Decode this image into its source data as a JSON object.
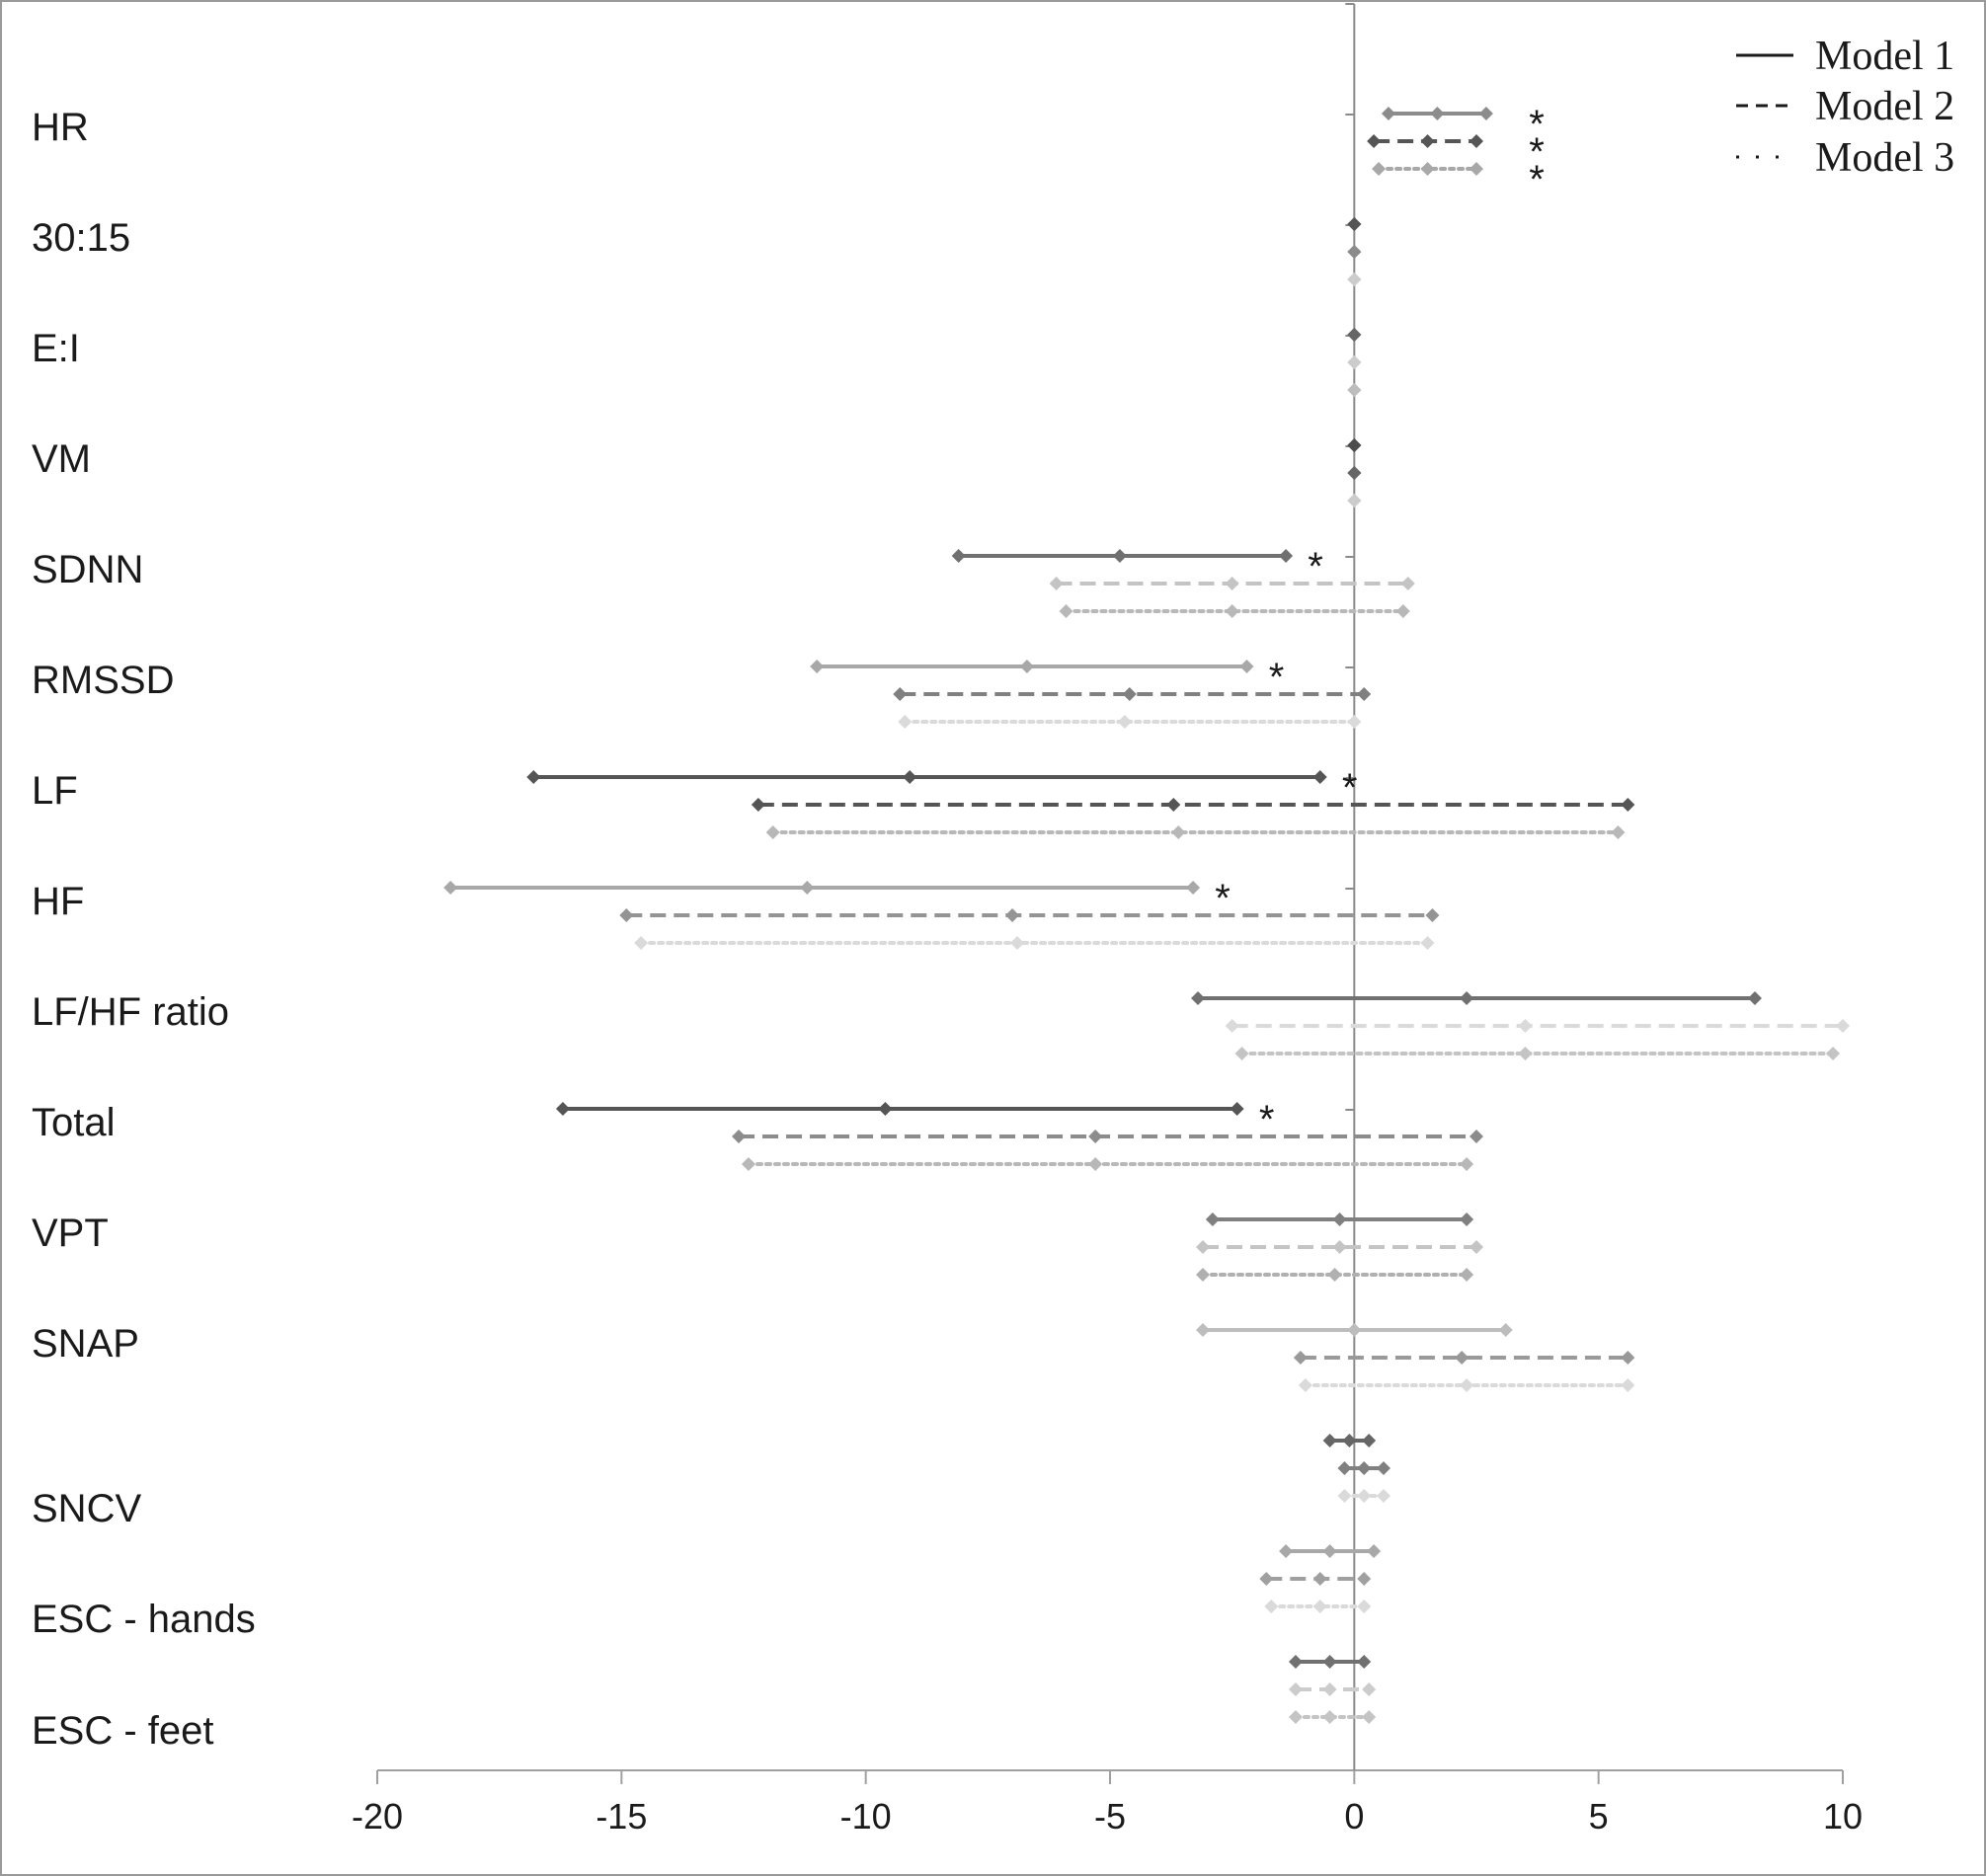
{
  "chart_data": {
    "type": "forest",
    "title": "",
    "xlabel": "",
    "ylabel": "",
    "xlim": [
      -20,
      10
    ],
    "xticks": [
      -20,
      -15,
      -10,
      -5,
      0,
      5,
      10
    ],
    "legend": {
      "position": "top-right",
      "entries": [
        {
          "label": "Model 1",
          "style": "solid"
        },
        {
          "label": "Model 2",
          "style": "dashed"
        },
        {
          "label": "Model 3",
          "style": "dotted"
        }
      ]
    },
    "series_styles": [
      "solid",
      "dashed",
      "dotted"
    ],
    "categories": [
      {
        "label": "HR",
        "rows": [
          {
            "model": 1,
            "lo": 0.7,
            "est": 1.7,
            "hi": 2.7,
            "sig": true,
            "color": "#8c8c8c"
          },
          {
            "model": 2,
            "lo": 0.4,
            "est": 1.5,
            "hi": 2.5,
            "sig": true,
            "color": "#555555"
          },
          {
            "model": 3,
            "lo": 0.5,
            "est": 1.5,
            "hi": 2.5,
            "sig": true,
            "color": "#a8a8a8"
          }
        ]
      },
      {
        "label": "30:15",
        "rows": [
          {
            "model": 1,
            "lo": 0,
            "est": 0,
            "hi": 0,
            "sig": false,
            "color": "#555555"
          },
          {
            "model": 2,
            "lo": 0,
            "est": 0,
            "hi": 0,
            "sig": false,
            "color": "#8c8c8c"
          },
          {
            "model": 3,
            "lo": 0,
            "est": 0,
            "hi": 0,
            "sig": false,
            "color": "#cccccc"
          }
        ]
      },
      {
        "label": "E:I",
        "rows": [
          {
            "model": 1,
            "lo": 0,
            "est": 0,
            "hi": 0,
            "sig": false,
            "color": "#666666"
          },
          {
            "model": 2,
            "lo": 0,
            "est": 0,
            "hi": 0,
            "sig": false,
            "color": "#cccccc"
          },
          {
            "model": 3,
            "lo": 0,
            "est": 0,
            "hi": 0,
            "sig": false,
            "color": "#bdbdbd"
          }
        ]
      },
      {
        "label": "VM",
        "rows": [
          {
            "model": 1,
            "lo": 0,
            "est": 0,
            "hi": 0,
            "sig": false,
            "color": "#4d4d4d"
          },
          {
            "model": 2,
            "lo": 0,
            "est": 0,
            "hi": 0,
            "sig": false,
            "color": "#666666"
          },
          {
            "model": 3,
            "lo": 0,
            "est": 0,
            "hi": 0,
            "sig": false,
            "color": "#cccccc"
          }
        ]
      },
      {
        "label": "SDNN",
        "rows": [
          {
            "model": 1,
            "lo": -8.1,
            "est": -4.8,
            "hi": -1.4,
            "sig": true,
            "color": "#707070"
          },
          {
            "model": 2,
            "lo": -6.1,
            "est": -2.5,
            "hi": 1.1,
            "sig": false,
            "color": "#c4c4c4"
          },
          {
            "model": 3,
            "lo": -5.9,
            "est": -2.5,
            "hi": 1.0,
            "sig": false,
            "color": "#b8b8b8"
          }
        ]
      },
      {
        "label": "RMSSD",
        "rows": [
          {
            "model": 1,
            "lo": -11.0,
            "est": -6.7,
            "hi": -2.2,
            "sig": true,
            "color": "#a8a8a8"
          },
          {
            "model": 2,
            "lo": -9.3,
            "est": -4.6,
            "hi": 0.2,
            "sig": false,
            "color": "#808080"
          },
          {
            "model": 3,
            "lo": -9.2,
            "est": -4.7,
            "hi": 0.0,
            "sig": false,
            "color": "#dadada"
          }
        ]
      },
      {
        "label": "LF",
        "rows": [
          {
            "model": 1,
            "lo": -16.8,
            "est": -9.1,
            "hi": -0.7,
            "sig": true,
            "color": "#555555"
          },
          {
            "model": 2,
            "lo": -12.2,
            "est": -3.7,
            "hi": 5.6,
            "sig": false,
            "color": "#555555"
          },
          {
            "model": 3,
            "lo": -11.9,
            "est": -3.6,
            "hi": 5.4,
            "sig": false,
            "color": "#b8b8b8"
          }
        ]
      },
      {
        "label": "HF",
        "rows": [
          {
            "model": 1,
            "lo": -18.5,
            "est": -11.2,
            "hi": -3.3,
            "sig": true,
            "color": "#a8a8a8"
          },
          {
            "model": 2,
            "lo": -14.9,
            "est": -7.0,
            "hi": 1.6,
            "sig": false,
            "color": "#949494"
          },
          {
            "model": 3,
            "lo": -14.6,
            "est": -6.9,
            "hi": 1.5,
            "sig": false,
            "color": "#dadada"
          }
        ]
      },
      {
        "label": "LF/HF ratio",
        "rows": [
          {
            "model": 1,
            "lo": -3.2,
            "est": 2.3,
            "hi": 8.2,
            "sig": false,
            "color": "#707070"
          },
          {
            "model": 2,
            "lo": -2.5,
            "est": 3.5,
            "hi": 10.0,
            "sig": false,
            "color": "#dadada"
          },
          {
            "model": 3,
            "lo": -2.3,
            "est": 3.5,
            "hi": 9.8,
            "sig": false,
            "color": "#c4c4c4"
          }
        ]
      },
      {
        "label": "Total",
        "rows": [
          {
            "model": 1,
            "lo": -16.2,
            "est": -9.6,
            "hi": -2.4,
            "sig": true,
            "color": "#555555"
          },
          {
            "model": 2,
            "lo": -12.6,
            "est": -5.3,
            "hi": 2.5,
            "sig": false,
            "color": "#8c8c8c"
          },
          {
            "model": 3,
            "lo": -12.4,
            "est": -5.3,
            "hi": 2.3,
            "sig": false,
            "color": "#b8b8b8"
          }
        ]
      },
      {
        "label": "VPT",
        "rows": [
          {
            "model": 1,
            "lo": -2.9,
            "est": -0.3,
            "hi": 2.3,
            "sig": false,
            "color": "#808080"
          },
          {
            "model": 2,
            "lo": -3.1,
            "est": -0.3,
            "hi": 2.5,
            "sig": false,
            "color": "#c4c4c4"
          },
          {
            "model": 3,
            "lo": -3.1,
            "est": -0.4,
            "hi": 2.3,
            "sig": false,
            "color": "#b0b0b0"
          }
        ]
      },
      {
        "label": "SNAP",
        "rows": [
          {
            "model": 1,
            "lo": -3.1,
            "est": 0.0,
            "hi": 3.1,
            "sig": false,
            "color": "#bdbdbd"
          },
          {
            "model": 2,
            "lo": -1.1,
            "est": 2.2,
            "hi": 5.6,
            "sig": false,
            "color": "#999999"
          },
          {
            "model": 3,
            "lo": -1.0,
            "est": 2.3,
            "hi": 5.6,
            "sig": false,
            "color": "#dadada"
          }
        ]
      },
      {
        "label": "SNCV",
        "rows": [
          {
            "model": 1,
            "lo": -0.5,
            "est": -0.1,
            "hi": 0.3,
            "sig": false,
            "color": "#666666"
          },
          {
            "model": 2,
            "lo": -0.2,
            "est": 0.2,
            "hi": 0.6,
            "sig": false,
            "color": "#808080"
          },
          {
            "model": 3,
            "lo": -0.2,
            "est": 0.2,
            "hi": 0.6,
            "sig": false,
            "color": "#dadada"
          }
        ]
      },
      {
        "label": "ESC - hands",
        "rows": [
          {
            "model": 1,
            "lo": -1.4,
            "est": -0.5,
            "hi": 0.4,
            "sig": false,
            "color": "#a8a8a8"
          },
          {
            "model": 2,
            "lo": -1.8,
            "est": -0.7,
            "hi": 0.2,
            "sig": false,
            "color": "#a0a0a0"
          },
          {
            "model": 3,
            "lo": -1.7,
            "est": -0.7,
            "hi": 0.2,
            "sig": false,
            "color": "#dadada"
          }
        ]
      },
      {
        "label": "ESC - feet",
        "rows": [
          {
            "model": 1,
            "lo": -1.2,
            "est": -0.5,
            "hi": 0.2,
            "sig": false,
            "color": "#707070"
          },
          {
            "model": 2,
            "lo": -1.2,
            "est": -0.5,
            "hi": 0.3,
            "sig": false,
            "color": "#cccccc"
          },
          {
            "model": 3,
            "lo": -1.2,
            "est": -0.5,
            "hi": 0.3,
            "sig": false,
            "color": "#c4c4c4"
          }
        ]
      }
    ],
    "significance_marker": "*"
  }
}
